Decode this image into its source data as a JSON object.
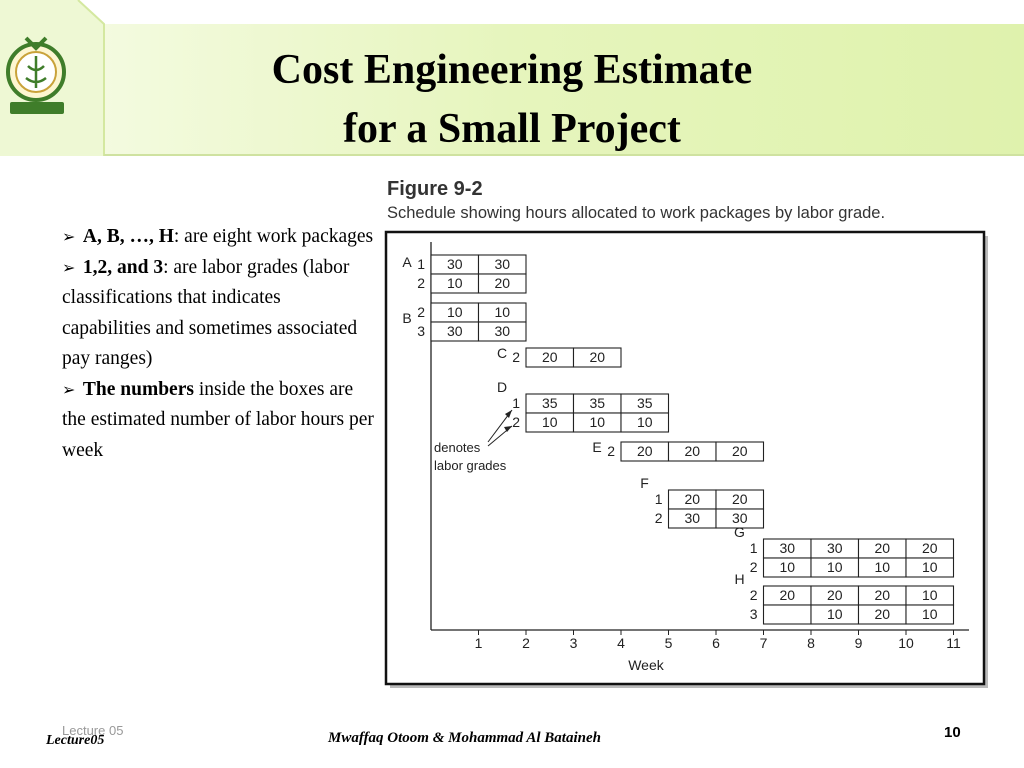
{
  "slide": {
    "title_line1": "Cost Engineering Estimate",
    "title_line2": "for a Small Project",
    "colors": {
      "banner_green": "#e4f4b8",
      "banner_light": "#f2fad8",
      "logo_green": "#3f7d2a"
    },
    "bullets": [
      {
        "bold": "A, B, …, H",
        "rest": ": are eight work packages"
      },
      {
        "bold": "1,2, and 3",
        "rest": ": are labor grades (labor classifications that indicates capabilities and sometimes associated pay ranges)"
      },
      {
        "bold": "The numbers",
        "rest": " inside the boxes are the estimated number of labor hours per week"
      }
    ]
  },
  "figure": {
    "title": "Figure 9-2",
    "caption": "Schedule showing hours allocated to work packages by labor grade.",
    "x_label": "Week",
    "week_ticks": [
      "1",
      "2",
      "3",
      "4",
      "5",
      "6",
      "7",
      "8",
      "9",
      "10",
      "11"
    ],
    "annotation_line1": "denotes",
    "annotation_line2": "labor grades",
    "packages": [
      {
        "name": "A",
        "rows": [
          {
            "grade": "1",
            "start_week": 1,
            "cells": [
              "30",
              "30"
            ]
          },
          {
            "grade": "2",
            "start_week": 1,
            "cells": [
              "10",
              "20"
            ]
          }
        ]
      },
      {
        "name": "B",
        "rows": [
          {
            "grade": "2",
            "start_week": 1,
            "cells": [
              "10",
              "10"
            ]
          },
          {
            "grade": "3",
            "start_week": 1,
            "cells": [
              "30",
              "30"
            ]
          }
        ]
      },
      {
        "name": "C",
        "rows": [
          {
            "grade": "2",
            "start_week": 3,
            "cells": [
              "20",
              "20"
            ]
          }
        ]
      },
      {
        "name": "D",
        "rows": [
          {
            "grade": "1",
            "start_week": 3,
            "cells": [
              "35",
              "35",
              "35"
            ]
          },
          {
            "grade": "2",
            "start_week": 3,
            "cells": [
              "10",
              "10",
              "10"
            ]
          }
        ]
      },
      {
        "name": "E",
        "rows": [
          {
            "grade": "2",
            "start_week": 5,
            "cells": [
              "20",
              "20",
              "20"
            ]
          }
        ]
      },
      {
        "name": "F",
        "rows": [
          {
            "grade": "1",
            "start_week": 6,
            "cells": [
              "20",
              "20"
            ]
          },
          {
            "grade": "2",
            "start_week": 6,
            "cells": [
              "30",
              "30"
            ]
          }
        ]
      },
      {
        "name": "G",
        "rows": [
          {
            "grade": "1",
            "start_week": 8,
            "cells": [
              "30",
              "30",
              "20",
              "20"
            ]
          },
          {
            "grade": "2",
            "start_week": 8,
            "cells": [
              "10",
              "10",
              "10",
              "10"
            ]
          }
        ]
      },
      {
        "name": "H",
        "rows": [
          {
            "grade": "2",
            "start_week": 8,
            "cells": [
              "20",
              "20",
              "20",
              "10"
            ]
          },
          {
            "grade": "3",
            "start_week": 8,
            "cells": [
              "",
              "10",
              "20",
              "10"
            ]
          }
        ]
      }
    ]
  },
  "footer": {
    "lecture_gray": "Lecture 05",
    "lecture": "Lecture05",
    "authors": "Mwaffaq Otoom & Mohammad Al Bataineh",
    "page": "10"
  }
}
